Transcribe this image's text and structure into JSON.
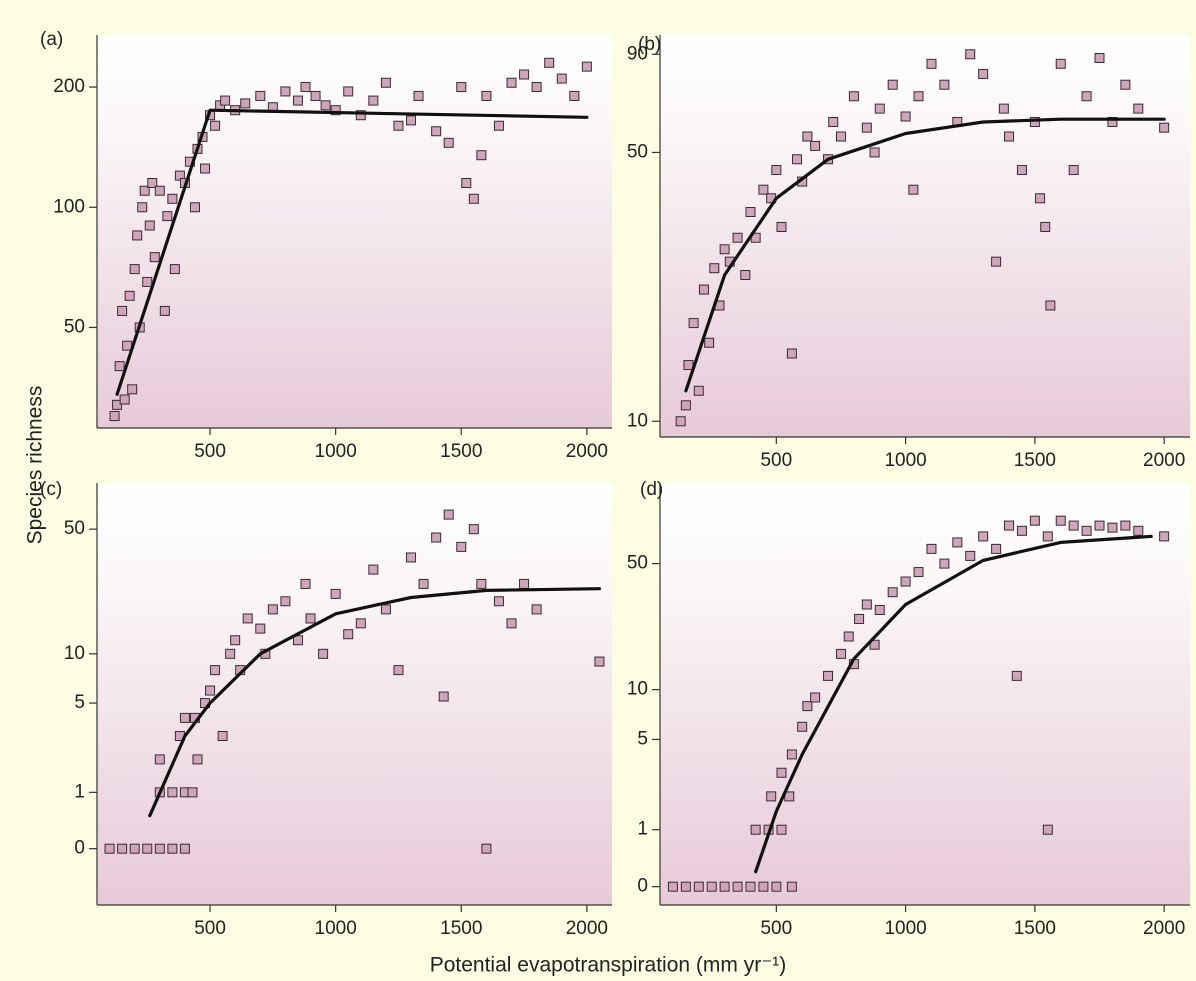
{
  "ylabel": "Species richness",
  "xlabel": "Potential evapotranspiration (mm yr⁻¹)",
  "chart_data": [
    {
      "type": "scatter",
      "label": "(a)",
      "yscale": "log",
      "xlim": [
        50,
        2100
      ],
      "xticks": [
        500,
        1000,
        1500,
        2000
      ],
      "ylim": [
        28,
        270
      ],
      "yticks": [
        50,
        100,
        200
      ],
      "series": [
        {
          "type": "scatter",
          "color": "#cfa6b9",
          "x": [
            120,
            130,
            140,
            150,
            160,
            170,
            180,
            190,
            200,
            210,
            220,
            230,
            240,
            250,
            260,
            270,
            280,
            300,
            320,
            330,
            350,
            360,
            380,
            400,
            420,
            440,
            450,
            470,
            480,
            500,
            520,
            540,
            560,
            600,
            640,
            700,
            750,
            800,
            850,
            880,
            920,
            960,
            1000,
            1050,
            1100,
            1150,
            1200,
            1250,
            1300,
            1330,
            1400,
            1450,
            1500,
            1520,
            1550,
            1580,
            1600,
            1650,
            1700,
            1750,
            1800,
            1850,
            1900,
            1950,
            2000
          ],
          "values": [
            30,
            32,
            40,
            55,
            33,
            45,
            60,
            35,
            70,
            85,
            50,
            100,
            110,
            65,
            90,
            115,
            75,
            110,
            55,
            95,
            105,
            70,
            120,
            115,
            130,
            100,
            140,
            150,
            125,
            170,
            160,
            180,
            185,
            175,
            182,
            190,
            178,
            195,
            185,
            200,
            190,
            180,
            175,
            195,
            170,
            185,
            205,
            160,
            165,
            190,
            155,
            145,
            200,
            115,
            105,
            135,
            190,
            160,
            205,
            215,
            200,
            230,
            210,
            190,
            225
          ]
        },
        {
          "type": "line",
          "color": "#111111",
          "x": [
            130,
            500,
            2000
          ],
          "values": [
            34,
            175,
            168
          ]
        }
      ]
    },
    {
      "type": "scatter",
      "label": "(b)",
      "yscale": "log",
      "xlim": [
        50,
        2100
      ],
      "xticks": [
        500,
        1000,
        1500,
        2000
      ],
      "ylim": [
        9.1,
        101
      ],
      "yticks": [
        10,
        50,
        90
      ],
      "series": [
        {
          "type": "scatter",
          "color": "#cfa6b9",
          "x": [
            130,
            150,
            160,
            180,
            200,
            220,
            240,
            260,
            280,
            300,
            320,
            350,
            380,
            400,
            420,
            450,
            480,
            500,
            520,
            560,
            580,
            600,
            620,
            650,
            700,
            720,
            750,
            800,
            850,
            880,
            900,
            950,
            1000,
            1030,
            1050,
            1100,
            1150,
            1200,
            1250,
            1300,
            1350,
            1380,
            1400,
            1450,
            1500,
            1520,
            1540,
            1560,
            1600,
            1650,
            1700,
            1750,
            1800,
            1850,
            1900,
            2000
          ],
          "values": [
            10,
            11,
            14,
            18,
            12,
            22,
            16,
            25,
            20,
            28,
            26,
            30,
            24,
            35,
            30,
            40,
            38,
            45,
            32,
            15,
            48,
            42,
            55,
            52,
            48,
            60,
            55,
            70,
            58,
            50,
            65,
            75,
            62,
            40,
            70,
            85,
            75,
            60,
            90,
            80,
            26,
            65,
            55,
            45,
            60,
            38,
            32,
            20,
            85,
            45,
            70,
            88,
            60,
            75,
            65,
            58
          ]
        },
        {
          "type": "line",
          "color": "#111111",
          "x": [
            150,
            300,
            500,
            700,
            1000,
            1300,
            1600,
            2000
          ],
          "values": [
            12,
            24,
            38,
            48,
            56,
            60,
            61,
            61
          ]
        }
      ]
    },
    {
      "type": "scatter",
      "label": "(c)",
      "yscale": "log1p",
      "xlim": [
        50,
        2100
      ],
      "xticks": [
        500,
        1000,
        1500,
        2000
      ],
      "ylim": [
        -0.5,
        89
      ],
      "yticks": [
        0,
        1,
        5,
        10,
        50
      ],
      "series": [
        {
          "type": "scatter",
          "color": "#cfa6b9",
          "x": [
            100,
            150,
            200,
            250,
            300,
            350,
            400,
            300,
            350,
            400,
            430,
            300,
            380,
            400,
            440,
            450,
            480,
            500,
            520,
            550,
            580,
            600,
            620,
            650,
            700,
            720,
            750,
            800,
            850,
            880,
            900,
            950,
            1000,
            1050,
            1100,
            1150,
            1200,
            1250,
            1300,
            1350,
            1400,
            1430,
            1450,
            1500,
            1550,
            1580,
            1600,
            1650,
            1700,
            1750,
            1800,
            2050
          ],
          "values": [
            0,
            0,
            0,
            0,
            0,
            0,
            0,
            1,
            1,
            1,
            1,
            2,
            3,
            4,
            4,
            2,
            5,
            6,
            8,
            3,
            10,
            12,
            8,
            16,
            14,
            10,
            18,
            20,
            12,
            25,
            16,
            10,
            22,
            13,
            15,
            30,
            18,
            8,
            35,
            25,
            45,
            5.5,
            60,
            40,
            50,
            25,
            0,
            20,
            15,
            25,
            18,
            9
          ]
        },
        {
          "type": "line",
          "color": "#111111",
          "x": [
            260,
            400,
            500,
            700,
            1000,
            1300,
            1600,
            2050
          ],
          "values": [
            0.5,
            3,
            5,
            10,
            17,
            21,
            23,
            23.5
          ]
        }
      ]
    },
    {
      "type": "scatter",
      "label": "(d)",
      "yscale": "log1p",
      "xlim": [
        50,
        2100
      ],
      "xticks": [
        500,
        1000,
        1500,
        2000
      ],
      "ylim": [
        -0.2,
        135
      ],
      "yticks": [
        0,
        1,
        5,
        10,
        50
      ],
      "series": [
        {
          "type": "scatter",
          "color": "#cfa6b9",
          "x": [
            100,
            150,
            200,
            250,
            300,
            350,
            400,
            450,
            500,
            560,
            420,
            470,
            520,
            480,
            520,
            550,
            560,
            600,
            620,
            650,
            700,
            750,
            780,
            800,
            820,
            850,
            880,
            900,
            950,
            1000,
            1050,
            1100,
            1150,
            1200,
            1250,
            1300,
            1350,
            1400,
            1430,
            1450,
            1500,
            1550,
            1550,
            1600,
            1650,
            1700,
            1750,
            1800,
            1850,
            1900,
            2000
          ],
          "values": [
            0,
            0,
            0,
            0,
            0,
            0,
            0,
            0,
            0,
            0,
            1,
            1,
            1,
            2,
            3,
            2,
            4,
            6,
            8,
            9,
            12,
            16,
            20,
            14,
            25,
            30,
            18,
            28,
            35,
            40,
            45,
            60,
            50,
            65,
            55,
            70,
            60,
            80,
            12,
            75,
            85,
            1,
            70,
            85,
            80,
            75,
            80,
            78,
            80,
            75,
            70
          ]
        },
        {
          "type": "line",
          "color": "#111111",
          "x": [
            420,
            500,
            600,
            800,
            1000,
            1300,
            1600,
            1950
          ],
          "values": [
            0.2,
            1.5,
            4,
            15,
            30,
            52,
            65,
            70
          ]
        }
      ]
    }
  ]
}
